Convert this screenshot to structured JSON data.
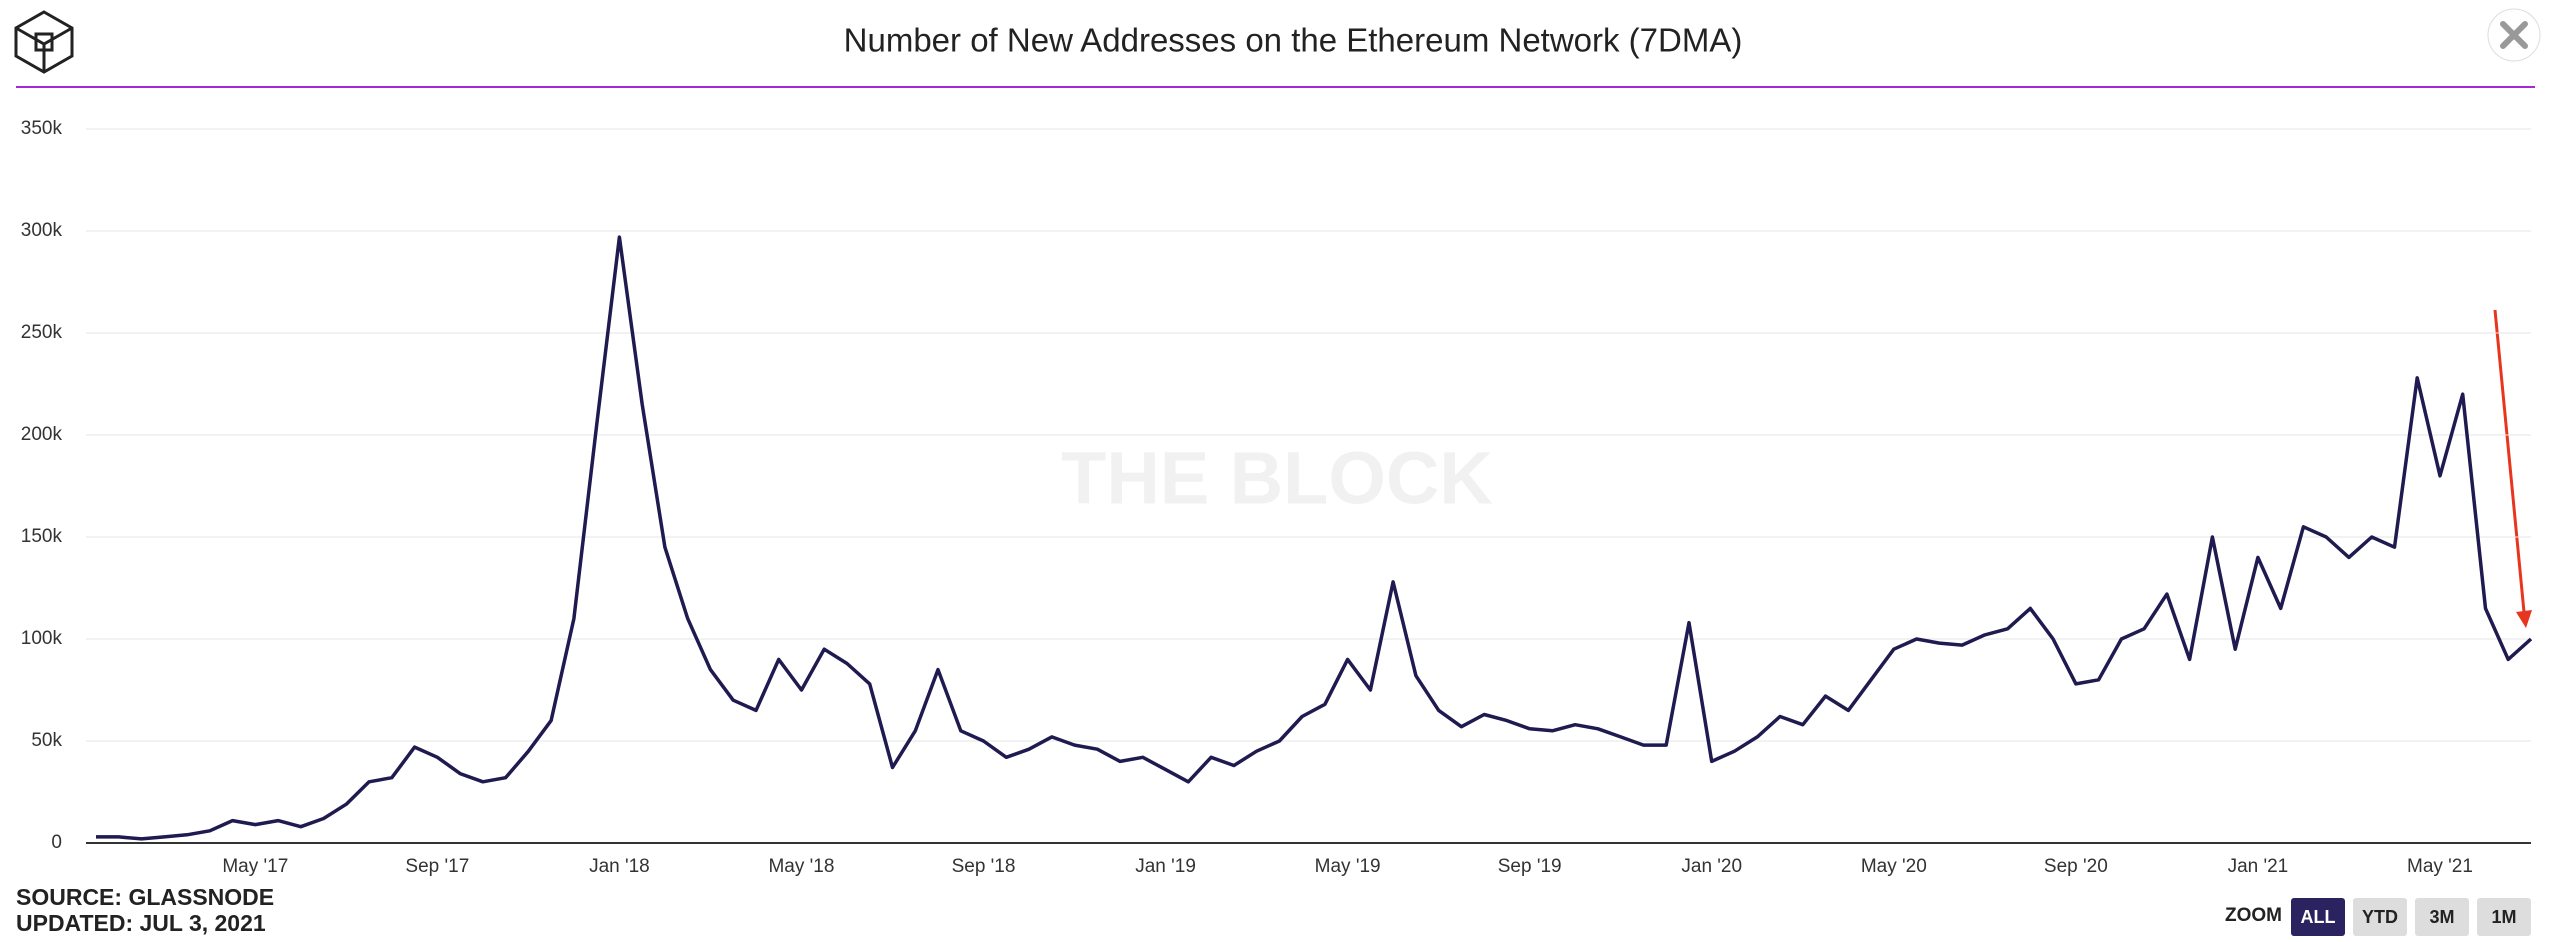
{
  "chart_data": {
    "type": "line",
    "title": "Number of New Addresses on the Ethereum Network (7DMA)",
    "categories": [
      null,
      null,
      null,
      null,
      null,
      null,
      null,
      "May '17",
      null,
      null,
      null,
      null,
      null,
      null,
      null,
      "Sep '17",
      null,
      null,
      null,
      null,
      null,
      null,
      null,
      "Jan '18",
      null,
      null,
      null,
      null,
      null,
      null,
      null,
      "May '18",
      null,
      null,
      null,
      null,
      null,
      null,
      null,
      "Sep '18",
      null,
      null,
      null,
      null,
      null,
      null,
      null,
      "Jan '19",
      null,
      null,
      null,
      null,
      null,
      null,
      null,
      "May '19",
      null,
      null,
      null,
      null,
      null,
      null,
      null,
      "Sep '19",
      null,
      null,
      null,
      null,
      null,
      null,
      null,
      "Jan '20",
      null,
      null,
      null,
      null,
      null,
      null,
      null,
      "May '20",
      null,
      null,
      null,
      null,
      null,
      null,
      null,
      "Sep '20",
      null,
      null,
      null,
      null,
      null,
      null,
      null,
      "Jan '21",
      null,
      null,
      null,
      null,
      null,
      null,
      null,
      "May '21",
      null,
      null,
      null,
      null
    ],
    "values": [
      3000,
      3000,
      2000,
      3000,
      4000,
      6000,
      11000,
      9000,
      11000,
      8000,
      12000,
      19000,
      30000,
      32000,
      47000,
      42000,
      34000,
      30000,
      32000,
      45000,
      60000,
      110000,
      205000,
      297000,
      215000,
      145000,
      110000,
      85000,
      70000,
      65000,
      90000,
      75000,
      95000,
      88000,
      78000,
      37000,
      55000,
      85000,
      55000,
      50000,
      42000,
      46000,
      52000,
      48000,
      46000,
      40000,
      42000,
      36000,
      30000,
      42000,
      38000,
      45000,
      50000,
      62000,
      68000,
      90000,
      75000,
      128000,
      82000,
      65000,
      57000,
      63000,
      60000,
      56000,
      55000,
      58000,
      56000,
      52000,
      48000,
      48000,
      108000,
      40000,
      45000,
      52000,
      62000,
      58000,
      72000,
      65000,
      80000,
      95000,
      100000,
      98000,
      97000,
      102000,
      105000,
      115000,
      100000,
      78000,
      80000,
      100000,
      105000,
      122000,
      90000,
      150000,
      95000,
      140000,
      115000,
      155000,
      150000,
      140000,
      150000,
      145000,
      228000,
      180000,
      220000,
      115000,
      90000,
      100000
    ],
    "color": "#1f1a4f",
    "ylim": [
      0,
      350000
    ],
    "yticks": [
      0,
      {
        "value": 50000,
        "label": "50k"
      },
      {
        "value": 100000,
        "label": "100k"
      },
      {
        "value": 150000,
        "label": "150k"
      },
      {
        "value": 200000,
        "label": "200k"
      },
      {
        "value": 250000,
        "label": "250k"
      },
      {
        "value": 300000,
        "label": "300k"
      },
      {
        "value": 350000,
        "label": "350k"
      }
    ],
    "grid": true
  },
  "watermark": "THE BLOCK",
  "source": "SOURCE: GLASSNODE",
  "updated": "UPDATED: JUL 3, 2021",
  "zoom": {
    "label": "ZOOM",
    "buttons": [
      "ALL",
      "YTD",
      "3M",
      "1M"
    ]
  }
}
